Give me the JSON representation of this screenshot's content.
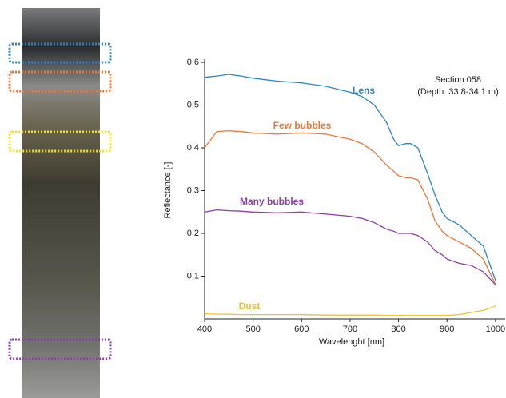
{
  "chart_data": {
    "type": "line",
    "annotations": [
      "Section 058",
      "(Depth: 33.8-34.1 m)"
    ],
    "x_label": "Wavelenght [nm]",
    "y_label": "Reflectance [-]",
    "x": [
      400,
      425,
      450,
      475,
      500,
      550,
      600,
      650,
      700,
      725,
      750,
      775,
      790,
      800,
      815,
      825,
      840,
      860,
      875,
      890,
      900,
      925,
      950,
      975,
      1000
    ],
    "series": [
      {
        "name": "Lens",
        "color": "#2b85c4",
        "values": [
          0.565,
          0.568,
          0.572,
          0.568,
          0.563,
          0.556,
          0.552,
          0.544,
          0.53,
          0.52,
          0.5,
          0.46,
          0.42,
          0.405,
          0.41,
          0.41,
          0.4,
          0.34,
          0.29,
          0.25,
          0.235,
          0.22,
          0.195,
          0.17,
          0.09
        ]
      },
      {
        "name": "Few bubbles",
        "color": "#e8783a",
        "values": [
          0.4,
          0.438,
          0.44,
          0.438,
          0.435,
          0.432,
          0.435,
          0.432,
          0.42,
          0.41,
          0.39,
          0.36,
          0.345,
          0.335,
          0.33,
          0.33,
          0.325,
          0.28,
          0.23,
          0.205,
          0.195,
          0.18,
          0.165,
          0.14,
          0.08
        ]
      },
      {
        "name": "Many bubbles",
        "color": "#8a3fa6",
        "values": [
          0.25,
          0.255,
          0.253,
          0.252,
          0.25,
          0.248,
          0.25,
          0.245,
          0.24,
          0.235,
          0.225,
          0.21,
          0.205,
          0.2,
          0.2,
          0.2,
          0.195,
          0.18,
          0.16,
          0.15,
          0.14,
          0.13,
          0.125,
          0.11,
          0.08
        ]
      },
      {
        "name": "Dust",
        "color": "#f2be2e",
        "values": [
          0.012,
          0.011,
          0.011,
          0.01,
          0.01,
          0.01,
          0.01,
          0.009,
          0.009,
          0.009,
          0.009,
          0.008,
          0.008,
          0.008,
          0.008,
          0.008,
          0.008,
          0.008,
          0.008,
          0.008,
          0.008,
          0.01,
          0.015,
          0.02,
          0.03
        ]
      }
    ],
    "xlim": [
      400,
      1020
    ],
    "xticks": [
      400,
      500,
      600,
      700,
      800,
      900,
      1000
    ],
    "ylim": [
      0,
      0.6
    ],
    "yticks": [
      0.1,
      0.2,
      0.3,
      0.4,
      0.5,
      0.6
    ],
    "grid": false
  }
}
